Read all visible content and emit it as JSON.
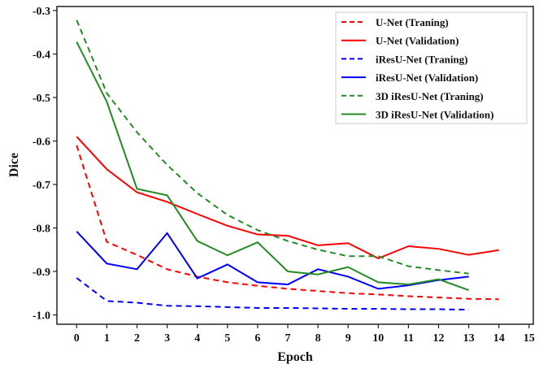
{
  "chart_data": {
    "type": "line",
    "title": "",
    "xlabel": "Epoch",
    "ylabel": "Dice",
    "xlim": [
      -0.6,
      15
    ],
    "ylim": [
      -1.02,
      -0.29
    ],
    "xticks": [
      0,
      1,
      2,
      3,
      4,
      5,
      6,
      7,
      8,
      9,
      10,
      11,
      12,
      13,
      14,
      15
    ],
    "yticks": [
      -1.0,
      -0.9,
      -0.8,
      -0.7,
      -0.6,
      -0.5,
      -0.4,
      -0.3
    ],
    "ytick_labels": [
      "-1.0",
      "-0.9",
      "-0.8",
      "-0.7",
      "-0.6",
      "-0.5",
      "-0.4",
      "-0.3"
    ],
    "grid": false,
    "legend_position": "top-right",
    "series": [
      {
        "name": "U-Net (Traning)",
        "color": "#ff0000",
        "dash": true,
        "x": [
          0,
          1,
          2,
          3,
          4,
          5,
          6,
          7,
          8,
          9,
          10,
          11,
          12,
          13,
          14
        ],
        "y": [
          -0.61,
          -0.832,
          -0.862,
          -0.895,
          -0.912,
          -0.925,
          -0.933,
          -0.94,
          -0.945,
          -0.95,
          -0.953,
          -0.957,
          -0.96,
          -0.963,
          -0.964
        ]
      },
      {
        "name": "U-Net (Validation)",
        "color": "#ff0000",
        "dash": false,
        "x": [
          0,
          1,
          2,
          3,
          4,
          5,
          6,
          7,
          8,
          9,
          10,
          11,
          12,
          13,
          14
        ],
        "y": [
          -0.59,
          -0.665,
          -0.718,
          -0.74,
          -0.768,
          -0.795,
          -0.815,
          -0.818,
          -0.84,
          -0.835,
          -0.87,
          -0.842,
          -0.848,
          -0.862,
          -0.851
        ]
      },
      {
        "name": "iResU-Net (Traning)",
        "color": "#0000ff",
        "dash": true,
        "x": [
          0,
          1,
          2,
          3,
          4,
          5,
          6,
          7,
          8,
          9,
          10,
          11,
          12,
          13
        ],
        "y": [
          -0.915,
          -0.968,
          -0.972,
          -0.979,
          -0.98,
          -0.982,
          -0.984,
          -0.984,
          -0.985,
          -0.986,
          -0.986,
          -0.987,
          -0.987,
          -0.988
        ]
      },
      {
        "name": "iResU-Net (Validation)",
        "color": "#0000ff",
        "dash": false,
        "x": [
          0,
          1,
          2,
          3,
          4,
          5,
          6,
          7,
          8,
          9,
          10,
          11,
          12,
          13
        ],
        "y": [
          -0.808,
          -0.882,
          -0.895,
          -0.812,
          -0.916,
          -0.884,
          -0.925,
          -0.93,
          -0.895,
          -0.912,
          -0.94,
          -0.932,
          -0.92,
          -0.912
        ]
      },
      {
        "name": "3D iResU-Net (Traning)",
        "color": "#228b22",
        "dash": true,
        "x": [
          0,
          1,
          2,
          3,
          4,
          5,
          6,
          7,
          8,
          9,
          10,
          11,
          12,
          13
        ],
        "y": [
          -0.322,
          -0.49,
          -0.58,
          -0.655,
          -0.72,
          -0.77,
          -0.805,
          -0.83,
          -0.85,
          -0.865,
          -0.865,
          -0.888,
          -0.897,
          -0.905
        ]
      },
      {
        "name": "3D iResU-Net (Validation)",
        "color": "#228b22",
        "dash": false,
        "x": [
          0,
          1,
          2,
          3,
          4,
          5,
          6,
          7,
          8,
          9,
          10,
          11,
          12,
          13
        ],
        "y": [
          -0.372,
          -0.51,
          -0.71,
          -0.725,
          -0.83,
          -0.863,
          -0.833,
          -0.9,
          -0.907,
          -0.89,
          -0.925,
          -0.93,
          -0.918,
          -0.943
        ]
      }
    ]
  }
}
